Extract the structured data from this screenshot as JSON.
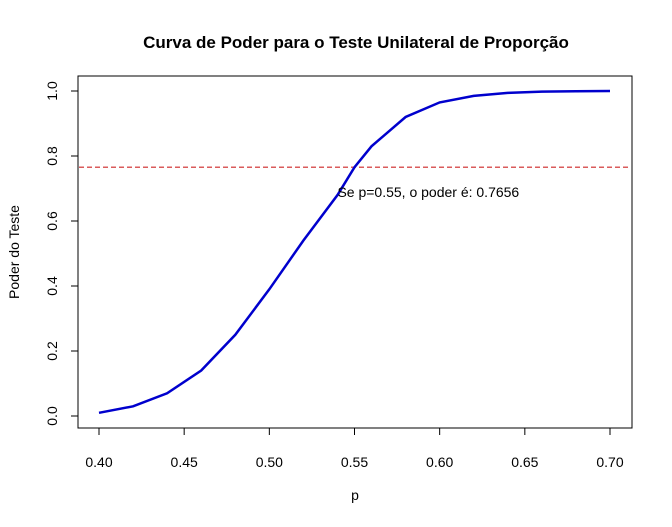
{
  "chart_data": {
    "type": "line",
    "title": "Curva de Poder para o Teste Unilateral de Proporção",
    "xlabel": "p",
    "ylabel": "Poder do Teste",
    "xlim": [
      0.4,
      0.7
    ],
    "ylim": [
      0.0,
      1.0
    ],
    "x_ticks": [
      "0.40",
      "0.45",
      "0.50",
      "0.55",
      "0.60",
      "0.65",
      "0.70"
    ],
    "y_ticks": [
      "0.0",
      "0.2",
      "0.4",
      "0.6",
      "0.8",
      "1.0"
    ],
    "grid": false,
    "series": [
      {
        "color": "#0000cd",
        "x": [
          0.4,
          0.42,
          0.44,
          0.46,
          0.48,
          0.5,
          0.52,
          0.54,
          0.55,
          0.56,
          0.58,
          0.6,
          0.62,
          0.64,
          0.66,
          0.68,
          0.7
        ],
        "y": [
          0.01,
          0.03,
          0.07,
          0.14,
          0.25,
          0.39,
          0.54,
          0.68,
          0.7656,
          0.83,
          0.92,
          0.965,
          0.985,
          0.994,
          0.998,
          0.999,
          1.0
        ]
      }
    ],
    "reference_line": {
      "y": 0.7656,
      "color": "#cd2626",
      "style": "dashed"
    },
    "annotation": {
      "text": "Se p=0.55, o poder é: 0.7656",
      "x": 0.54,
      "y": 0.69
    }
  }
}
